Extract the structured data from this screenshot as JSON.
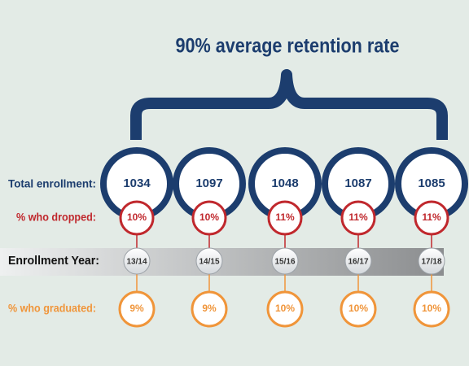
{
  "title": "90% average retention rate",
  "row_labels": {
    "enrollment": "Total enrollment:",
    "dropped": "% who dropped:",
    "year": "Enrollment Year:",
    "graduated": "% who graduated:"
  },
  "columns": [
    {
      "enrollment": "1034",
      "dropped": "10%",
      "year": "13/14",
      "graduated": "9%"
    },
    {
      "enrollment": "1097",
      "dropped": "10%",
      "year": "14/15",
      "graduated": "9%"
    },
    {
      "enrollment": "1048",
      "dropped": "11%",
      "year": "15/16",
      "graduated": "10%"
    },
    {
      "enrollment": "1087",
      "dropped": "11%",
      "year": "16/17",
      "graduated": "10%"
    },
    {
      "enrollment": "1085",
      "dropped": "11%",
      "year": "17/18",
      "graduated": "10%"
    }
  ]
}
